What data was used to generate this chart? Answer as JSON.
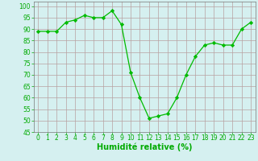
{
  "x": [
    0,
    1,
    2,
    3,
    4,
    5,
    6,
    7,
    8,
    9,
    10,
    11,
    12,
    13,
    14,
    15,
    16,
    17,
    18,
    19,
    20,
    21,
    22,
    23
  ],
  "y": [
    89,
    89,
    89,
    93,
    94,
    96,
    95,
    95,
    98,
    92,
    71,
    60,
    51,
    52,
    53,
    60,
    70,
    78,
    83,
    84,
    83,
    83,
    90,
    93
  ],
  "line_color": "#00bb00",
  "marker": "D",
  "marker_size": 2.2,
  "bg_color": "#d5f0f0",
  "grid_color": "#b8a0a0",
  "xlabel": "Humidité relative (%)",
  "xlabel_color": "#00aa00",
  "xlabel_fontsize": 7,
  "tick_color": "#00aa00",
  "tick_fontsize": 5.5,
  "ylim": [
    45,
    102
  ],
  "yticks": [
    45,
    50,
    55,
    60,
    65,
    70,
    75,
    80,
    85,
    90,
    95,
    100
  ],
  "xlim": [
    -0.5,
    23.5
  ]
}
